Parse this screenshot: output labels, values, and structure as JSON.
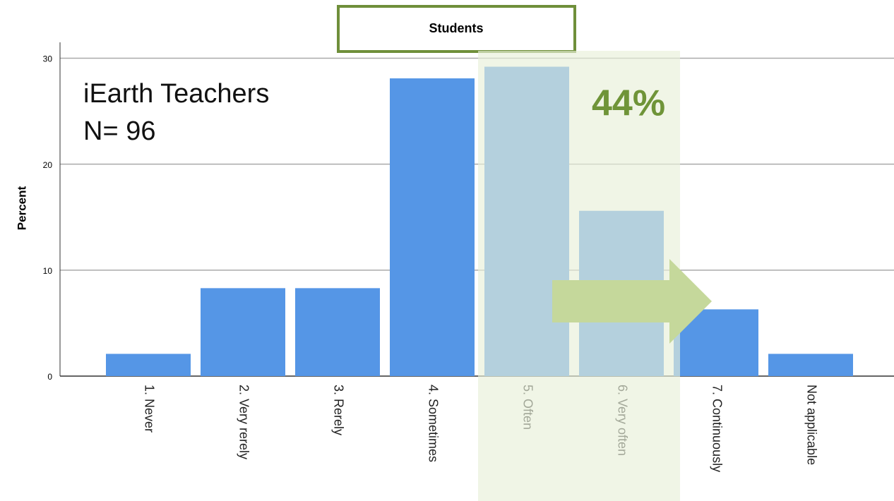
{
  "chart_data": {
    "type": "bar",
    "title": "Students",
    "ylabel": "Percent",
    "annotations": [
      "iEarth Teachers",
      "N= 96",
      "44%"
    ],
    "categories": [
      "1. Never",
      "2. Very rerely",
      "3. Rerely",
      "4. Sometimes",
      "5. Often",
      "6. Very often",
      "7. Continuously",
      "Not applicable"
    ],
    "values": [
      2.1,
      8.3,
      8.3,
      28.1,
      29.2,
      15.6,
      6.3,
      2.1
    ],
    "color": "#5596e6",
    "ylim": [
      0,
      31.5
    ],
    "yticks": [
      0,
      10,
      20,
      30
    ],
    "grid": true
  }
}
